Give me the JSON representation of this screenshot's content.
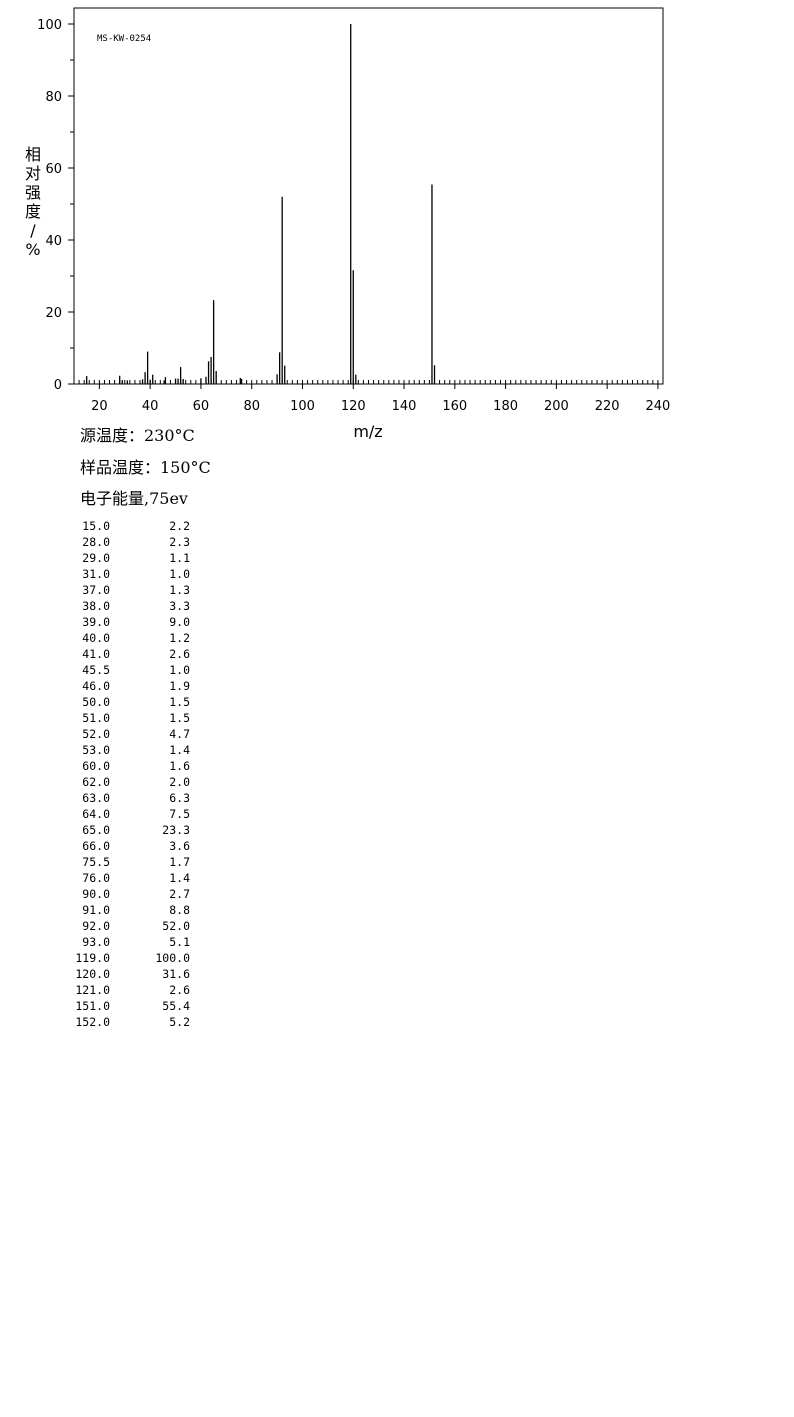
{
  "chart_data": {
    "type": "bar",
    "code": "MS-KW-0254",
    "ylabel": "相对强度/%",
    "xlabel": "m/z",
    "xlim": [
      10,
      242
    ],
    "ylim": [
      0,
      100
    ],
    "x_ticks": [
      "20",
      "40",
      "60",
      "80",
      "100",
      "120",
      "140",
      "160",
      "180",
      "200",
      "220",
      "240"
    ],
    "y_ticks": [
      "0",
      "20",
      "40",
      "60",
      "80",
      "100"
    ],
    "peaks": [
      {
        "mz": "15.0",
        "abundance": "2.2"
      },
      {
        "mz": "28.0",
        "abundance": "2.3"
      },
      {
        "mz": "29.0",
        "abundance": "1.1"
      },
      {
        "mz": "31.0",
        "abundance": "1.0"
      },
      {
        "mz": "37.0",
        "abundance": "1.3"
      },
      {
        "mz": "38.0",
        "abundance": "3.3"
      },
      {
        "mz": "39.0",
        "abundance": "9.0"
      },
      {
        "mz": "40.0",
        "abundance": "1.2"
      },
      {
        "mz": "41.0",
        "abundance": "2.6"
      },
      {
        "mz": "45.5",
        "abundance": "1.0"
      },
      {
        "mz": "46.0",
        "abundance": "1.9"
      },
      {
        "mz": "50.0",
        "abundance": "1.5"
      },
      {
        "mz": "51.0",
        "abundance": "1.5"
      },
      {
        "mz": "52.0",
        "abundance": "4.7"
      },
      {
        "mz": "53.0",
        "abundance": "1.4"
      },
      {
        "mz": "60.0",
        "abundance": "1.6"
      },
      {
        "mz": "62.0",
        "abundance": "2.0"
      },
      {
        "mz": "63.0",
        "abundance": "6.3"
      },
      {
        "mz": "64.0",
        "abundance": "7.5"
      },
      {
        "mz": "65.0",
        "abundance": "23.3"
      },
      {
        "mz": "66.0",
        "abundance": "3.6"
      },
      {
        "mz": "75.5",
        "abundance": "1.7"
      },
      {
        "mz": "76.0",
        "abundance": "1.4"
      },
      {
        "mz": "90.0",
        "abundance": "2.7"
      },
      {
        "mz": "91.0",
        "abundance": "8.8"
      },
      {
        "mz": "92.0",
        "abundance": "52.0"
      },
      {
        "mz": "93.0",
        "abundance": "5.1"
      },
      {
        "mz": "119.0",
        "abundance": "100.0"
      },
      {
        "mz": "120.0",
        "abundance": "31.6"
      },
      {
        "mz": "121.0",
        "abundance": "2.6"
      },
      {
        "mz": "151.0",
        "abundance": "55.4"
      },
      {
        "mz": "152.0",
        "abundance": "5.2"
      }
    ]
  },
  "conditions": {
    "source_temp": "源温度：230°C",
    "sample_temp": "样品温度：150°C",
    "electron_energy": "电子能量,75ev"
  }
}
